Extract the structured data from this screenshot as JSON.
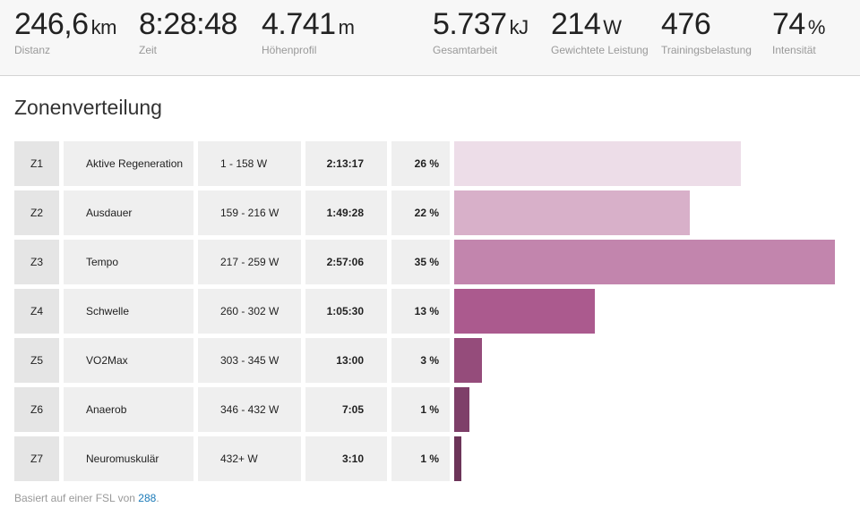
{
  "stats": [
    {
      "value": "246,6",
      "unit": "km",
      "label": "Distanz"
    },
    {
      "value": "8:28:48",
      "unit": "",
      "label": "Zeit"
    },
    {
      "value": "4.741",
      "unit": "m",
      "label": "Höhenprofil"
    },
    {
      "value": "5.737",
      "unit": "kJ",
      "label": "Gesamtarbeit"
    },
    {
      "value": "214",
      "unit": "W",
      "label": "Gewichtete Leistung"
    },
    {
      "value": "476",
      "unit": "",
      "label": "Trainingsbelastung"
    },
    {
      "value": "74",
      "unit": "%",
      "label": "Intensität"
    }
  ],
  "section_title": "Zonenverteilung",
  "zones": [
    {
      "zone": "Z1",
      "name": "Aktive Regeneration",
      "range": "1 - 158 W",
      "time": "2:13:17",
      "pct": "26 %",
      "color": "#eddde8"
    },
    {
      "zone": "Z2",
      "name": "Ausdauer",
      "range": "159 - 216 W",
      "time": "1:49:28",
      "pct": "22 %",
      "color": "#d8b0c9"
    },
    {
      "zone": "Z3",
      "name": "Tempo",
      "range": "217 - 259 W",
      "time": "2:57:06",
      "pct": "35 %",
      "color": "#c285ad"
    },
    {
      "zone": "Z4",
      "name": "Schwelle",
      "range": "260 - 302 W",
      "time": "1:05:30",
      "pct": "13 %",
      "color": "#ab5a8e"
    },
    {
      "zone": "Z5",
      "name": "VO2Max",
      "range": "303 - 345 W",
      "time": "13:00",
      "pct": "3 %",
      "color": "#954c7b"
    },
    {
      "zone": "Z6",
      "name": "Anaerob",
      "range": "346 - 432 W",
      "time": "7:05",
      "pct": "1 %",
      "color": "#7e3f69"
    },
    {
      "zone": "Z7",
      "name": "Neuromuskulär",
      "range": "432+ W",
      "time": "3:10",
      "pct": "1 %",
      "color": "#6c3459"
    }
  ],
  "footer": {
    "text": "Basiert auf einer FSL von ",
    "link": "288",
    "end": "."
  }
}
